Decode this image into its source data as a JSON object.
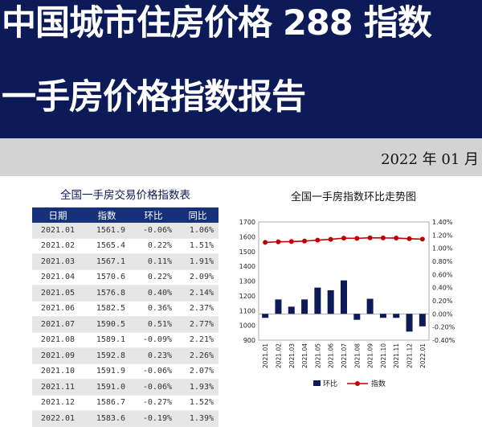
{
  "header": {
    "title_line1": "中国城市住房价格 288 指数",
    "title_line2": "一手房价格指数报告",
    "date": "2022 年 01 月"
  },
  "table": {
    "title": "全国一手房交易价格指数表",
    "headers": [
      "日期",
      "指数",
      "环比",
      "同比"
    ],
    "rows": [
      [
        "2021.01",
        "1561.9",
        "-0.06%",
        "1.06%"
      ],
      [
        "2021.02",
        "1565.4",
        "0.22%",
        "1.51%"
      ],
      [
        "2021.03",
        "1567.1",
        "0.11%",
        "1.91%"
      ],
      [
        "2021.04",
        "1570.6",
        "0.22%",
        "2.09%"
      ],
      [
        "2021.05",
        "1576.8",
        "0.40%",
        "2.14%"
      ],
      [
        "2021.06",
        "1582.5",
        "0.36%",
        "2.37%"
      ],
      [
        "2021.07",
        "1590.5",
        "0.51%",
        "2.77%"
      ],
      [
        "2021.08",
        "1589.1",
        "-0.09%",
        "2.21%"
      ],
      [
        "2021.09",
        "1592.8",
        "0.23%",
        "2.26%"
      ],
      [
        "2021.10",
        "1591.9",
        "-0.06%",
        "2.07%"
      ],
      [
        "2021.11",
        "1591.0",
        "-0.06%",
        "1.93%"
      ],
      [
        "2021.12",
        "1586.7",
        "-0.27%",
        "1.52%"
      ],
      [
        "2022.01",
        "1583.6",
        "-0.19%",
        "1.39%"
      ]
    ]
  },
  "chart_data": {
    "type": "bar",
    "title": "全国一手房指数环比走势图",
    "categories": [
      "2021.01",
      "2021.02",
      "2021.03",
      "2021.04",
      "2021.05",
      "2021.06",
      "2021.07",
      "2021.08",
      "2021.09",
      "2021.10",
      "2021.11",
      "2021.12",
      "2022.01"
    ],
    "series": [
      {
        "name": "环比",
        "type": "bar",
        "axis": "right",
        "color": "#0c1b58",
        "values": [
          -0.06,
          0.22,
          0.11,
          0.22,
          0.4,
          0.36,
          0.51,
          -0.09,
          0.23,
          -0.06,
          -0.06,
          -0.27,
          -0.19
        ]
      },
      {
        "name": "指数",
        "type": "line",
        "axis": "left",
        "color": "#c00000",
        "values": [
          1561.9,
          1565.4,
          1567.1,
          1570.6,
          1576.8,
          1582.5,
          1590.5,
          1589.1,
          1592.8,
          1591.9,
          1591.0,
          1586.7,
          1583.6
        ]
      }
    ],
    "ylim_left": [
      900,
      1700
    ],
    "yticks_left": [
      "1700",
      "1600",
      "1500",
      "1400",
      "1300",
      "1200",
      "1100",
      "1000",
      "900"
    ],
    "ylim_right": [
      -0.4,
      1.4
    ],
    "yticks_right": [
      "1.40%",
      "1.20%",
      "1.00%",
      "0.80%",
      "0.60%",
      "0.40%",
      "0.20%",
      "0.00%",
      "-0.20%",
      "-0.40%"
    ],
    "legend_position": "bottom",
    "grid": false
  }
}
